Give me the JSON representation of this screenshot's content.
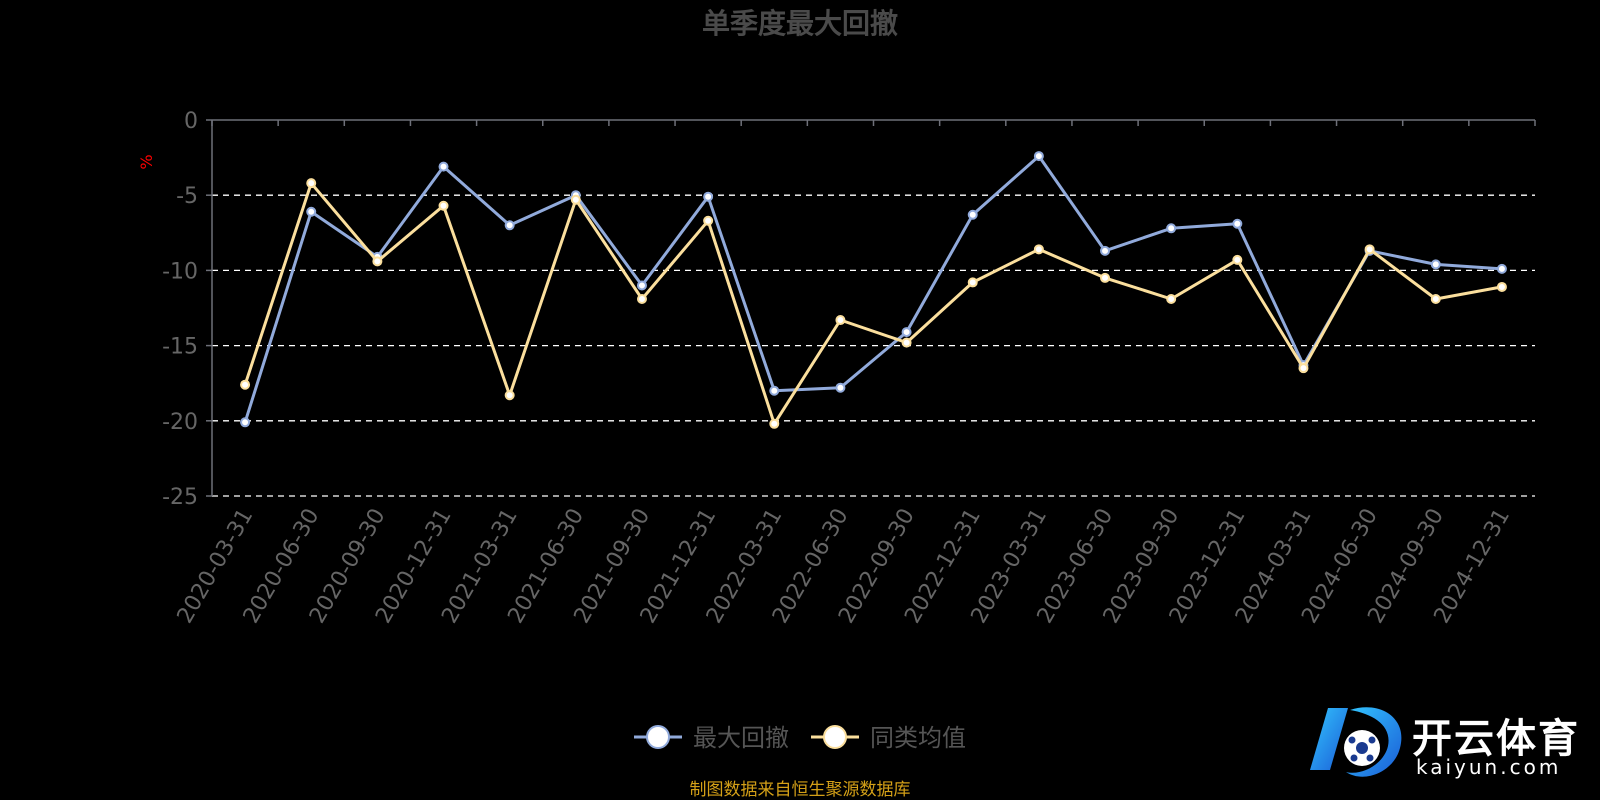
{
  "chart_data": {
    "type": "line",
    "title": "单季度最大回撤",
    "ylabel": "%",
    "ylim": [
      -25,
      0
    ],
    "yticks": [
      0,
      -5,
      -10,
      -15,
      -20,
      -25
    ],
    "grid": "dashed horizontal",
    "legend_position": "bottom-center",
    "categories": [
      "2020-03-31",
      "2020-06-30",
      "2020-09-30",
      "2020-12-31",
      "2021-03-31",
      "2021-06-30",
      "2021-09-30",
      "2021-12-31",
      "2022-03-31",
      "2022-06-30",
      "2022-09-30",
      "2022-12-31",
      "2023-03-31",
      "2023-06-30",
      "2023-09-30",
      "2023-12-31",
      "2024-03-31",
      "2024-06-30",
      "2024-09-30",
      "2024-12-31"
    ],
    "series": [
      {
        "name": "最大回撤",
        "color": "#91aadb",
        "values": [
          -20.1,
          -6.1,
          -9.1,
          -3.1,
          -7.0,
          -5.0,
          -11.0,
          -5.1,
          -18.0,
          -17.8,
          -14.1,
          -6.3,
          -2.4,
          -8.7,
          -7.2,
          -6.9,
          -16.3,
          -8.7,
          -9.6,
          -9.9
        ]
      },
      {
        "name": "同类均值",
        "color": "#fbdf9d",
        "values": [
          -17.6,
          -4.2,
          -9.4,
          -5.7,
          -18.3,
          -5.3,
          -11.9,
          -6.7,
          -20.2,
          -13.3,
          -14.8,
          -10.8,
          -8.6,
          -10.5,
          -11.9,
          -9.3,
          -16.5,
          -8.6,
          -11.9,
          -11.1
        ]
      }
    ]
  },
  "source_note": "制图数据来自恒生聚源数据库",
  "watermark": {
    "name_cn": "开云体育",
    "name_en": "kaiyun.com"
  },
  "colors": {
    "background": "#000000",
    "axis": "#6e7079",
    "tick_label": "#666666",
    "grid": "#ffffff",
    "unit_label": "#ff0000",
    "source_note": "#d4a017"
  }
}
